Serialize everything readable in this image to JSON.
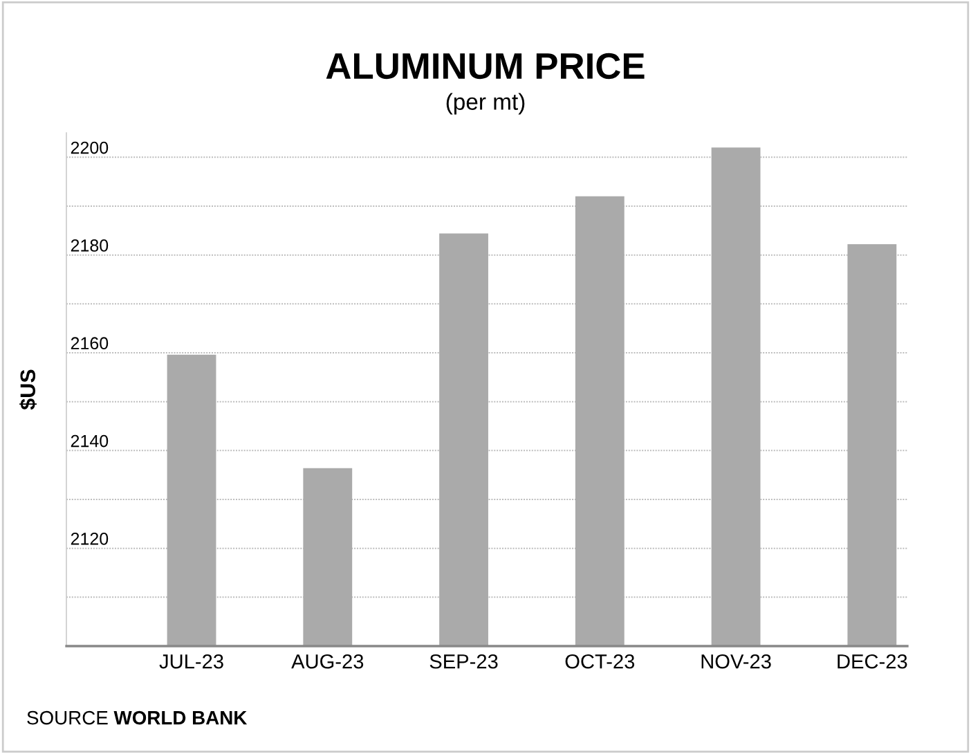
{
  "chart_data": {
    "type": "bar",
    "title": "ALUMINUM PRICE",
    "subtitle": "(per mt)",
    "ylabel": "$US",
    "categories": [
      "JUL-23",
      "AUG-23",
      "SEP-23",
      "OCT-23",
      "NOV-23",
      "DEC-23"
    ],
    "values": [
      2159.6,
      2136.4,
      2184.4,
      2192,
      2202,
      2182.2
    ],
    "color": "#aaaaaa",
    "ylim": [
      2100,
      2205
    ],
    "yticks": [
      {
        "value": 2110,
        "label": null
      },
      2120,
      {
        "value": 2130,
        "label": null
      },
      2140,
      {
        "value": 2150,
        "label": null
      },
      2160,
      {
        "value": 2170,
        "label": null
      },
      2180,
      {
        "value": 2190,
        "label": null
      },
      2200
    ],
    "grid": "y",
    "annotations": [
      "SOURCE WORLD BANK"
    ]
  }
}
